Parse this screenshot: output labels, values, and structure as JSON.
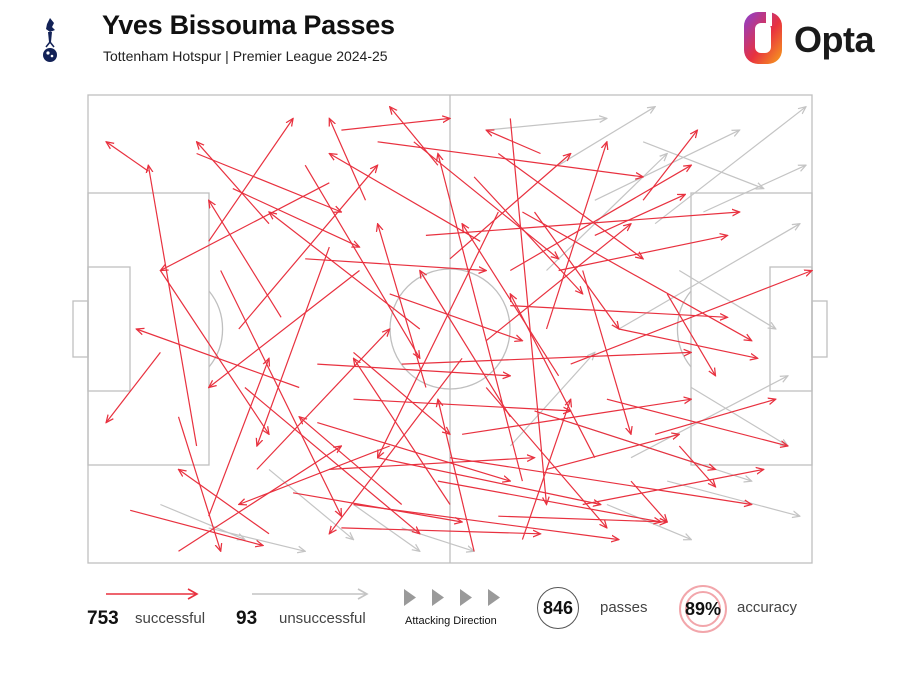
{
  "header": {
    "title": "Yves Bissouma Passes",
    "subtitle": "Tottenham Hotspur | Premier League 2024-25",
    "brand_name": "Opta",
    "crest_icon": "cockerel-crest-icon",
    "brand_icon": "opta-logo-icon"
  },
  "colors": {
    "successful": "#e8313f",
    "unsuccessful": "#c4c4c4",
    "pitch_lines": "#bfbfbf",
    "accuracy_ring": "#f2a6ab",
    "brand_gradient": [
      "#8a3fd1",
      "#e8313f",
      "#f7a21b"
    ]
  },
  "legend": {
    "successful_count": "753",
    "successful_label": "successful",
    "unsuccessful_count": "93",
    "unsuccessful_label": "unsuccessful",
    "direction_label": "Attacking Direction",
    "passes_value": "846",
    "passes_label": "passes",
    "accuracy_value": "89%",
    "accuracy_label": "accuracy"
  },
  "chart_data": {
    "type": "scatter",
    "title": "Yves Bissouma Passes",
    "subtitle": "Tottenham Hotspur | Premier League 2024-25",
    "pitch_length": 120,
    "pitch_width": 80,
    "direction": "left-to-right",
    "totals": {
      "successful": 753,
      "unsuccessful": 93,
      "passes": 846,
      "accuracy_pct": 89
    },
    "series": [
      {
        "name": "successful",
        "passes": [
          [
            7,
            71,
            29,
            77
          ],
          [
            10,
            13,
            3,
            8
          ],
          [
            12,
            44,
            3,
            56
          ],
          [
            15,
            78,
            42,
            60
          ],
          [
            18,
            60,
            10,
            12
          ],
          [
            20,
            72,
            30,
            45
          ],
          [
            22,
            30,
            42,
            72
          ],
          [
            24,
            16,
            45,
            26
          ],
          [
            26,
            50,
            55,
            75
          ],
          [
            28,
            64,
            50,
            40
          ],
          [
            30,
            22,
            18,
            8
          ],
          [
            32,
            38,
            20,
            18
          ],
          [
            34,
            68,
            62,
            73
          ],
          [
            36,
            12,
            55,
            45
          ],
          [
            38,
            56,
            70,
            66
          ],
          [
            40,
            26,
            28,
            60
          ],
          [
            42,
            74,
            75,
            75
          ],
          [
            44,
            44,
            60,
            58
          ],
          [
            46,
            18,
            40,
            4
          ],
          [
            48,
            62,
            85,
            70
          ],
          [
            50,
            34,
            72,
            42
          ],
          [
            52,
            70,
            35,
            55
          ],
          [
            54,
            8,
            78,
            28
          ],
          [
            56,
            50,
            48,
            22
          ],
          [
            58,
            66,
            95,
            73
          ],
          [
            60,
            28,
            80,
            10
          ],
          [
            62,
            58,
            100,
            52
          ],
          [
            64,
            14,
            82,
            34
          ],
          [
            66,
            42,
            90,
            22
          ],
          [
            68,
            72,
            96,
            73
          ],
          [
            70,
            36,
            106,
            38
          ],
          [
            72,
            20,
            110,
            42
          ],
          [
            74,
            54,
            104,
            64
          ],
          [
            76,
            64,
            98,
            58
          ],
          [
            78,
            30,
            106,
            24
          ],
          [
            80,
            46,
            120,
            30
          ],
          [
            82,
            70,
            112,
            64
          ],
          [
            84,
            24,
            99,
            17
          ],
          [
            86,
            52,
            116,
            60
          ],
          [
            88,
            40,
            111,
            45
          ],
          [
            90,
            66,
            96,
            73
          ],
          [
            92,
            18,
            101,
            6
          ],
          [
            94,
            58,
            114,
            52
          ],
          [
            96,
            34,
            104,
            48
          ],
          [
            98,
            60,
            104,
            67
          ],
          [
            55,
            40,
            30,
            20
          ],
          [
            60,
            70,
            44,
            45
          ],
          [
            65,
            25,
            40,
            10
          ],
          [
            70,
            55,
            55,
            30
          ],
          [
            75,
            10,
            66,
            6
          ],
          [
            50,
            60,
            25,
            70
          ],
          [
            45,
            30,
            20,
            50
          ],
          [
            40,
            15,
            12,
            30
          ],
          [
            35,
            50,
            8,
            40
          ],
          [
            30,
            75,
            15,
            64
          ],
          [
            25,
            40,
            48,
            12
          ],
          [
            20,
            25,
            34,
            4
          ],
          [
            15,
            55,
            22,
            78
          ],
          [
            12,
            30,
            30,
            58
          ],
          [
            18,
            10,
            42,
            20
          ],
          [
            62,
            45,
            40,
            75
          ],
          [
            68,
            20,
            48,
            62
          ],
          [
            72,
            66,
            58,
            10
          ],
          [
            78,
            48,
            62,
            22
          ],
          [
            84,
            62,
            70,
            34
          ],
          [
            58,
            12,
            50,
            2
          ],
          [
            64,
            78,
            58,
            52
          ],
          [
            70,
            4,
            76,
            70
          ],
          [
            76,
            40,
            86,
            8
          ],
          [
            82,
            30,
            90,
            58
          ],
          [
            44,
            70,
            88,
            76
          ],
          [
            48,
            8,
            92,
            14
          ],
          [
            52,
            46,
            100,
            44
          ],
          [
            56,
            24,
            108,
            20
          ],
          [
            60,
            62,
            110,
            70
          ],
          [
            36,
            28,
            66,
            30
          ],
          [
            38,
            46,
            70,
            48
          ],
          [
            40,
            64,
            74,
            62
          ],
          [
            42,
            6,
            60,
            4
          ],
          [
            44,
            52,
            80,
            54
          ],
          [
            66,
            50,
            86,
            74
          ],
          [
            68,
            10,
            92,
            28
          ],
          [
            70,
            30,
            100,
            12
          ],
          [
            72,
            76,
            80,
            52
          ],
          [
            74,
            20,
            88,
            40
          ]
        ]
      },
      {
        "name": "unsuccessful",
        "passes": [
          [
            12,
            70,
            26,
            76
          ],
          [
            20,
            74,
            36,
            78
          ],
          [
            30,
            64,
            44,
            76
          ],
          [
            44,
            70,
            55,
            78
          ],
          [
            52,
            74,
            64,
            78
          ],
          [
            70,
            60,
            84,
            44
          ],
          [
            76,
            30,
            96,
            10
          ],
          [
            80,
            56,
            110,
            66
          ],
          [
            84,
            18,
            108,
            6
          ],
          [
            88,
            40,
            118,
            22
          ],
          [
            90,
            62,
            116,
            48
          ],
          [
            94,
            22,
            119,
            2
          ],
          [
            96,
            66,
            118,
            72
          ],
          [
            98,
            30,
            114,
            40
          ],
          [
            100,
            50,
            116,
            60
          ],
          [
            86,
            70,
            100,
            76
          ],
          [
            78,
            12,
            94,
            2
          ],
          [
            66,
            6,
            86,
            4
          ],
          [
            92,
            8,
            112,
            16
          ],
          [
            102,
            20,
            119,
            12
          ]
        ]
      }
    ]
  }
}
